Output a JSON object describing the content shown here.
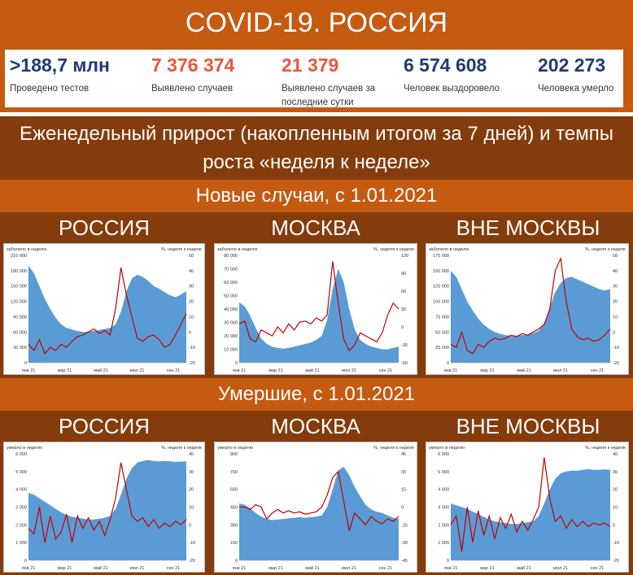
{
  "header": {
    "title": "COVID-19. РОССИЯ"
  },
  "stats": [
    {
      "value": ">188,7 млн",
      "label": "Проведено тестов",
      "color": "#1f3a78"
    },
    {
      "value": "7 376 374",
      "label": "Выявлено случаев",
      "color": "#e8573b"
    },
    {
      "value": "21 379",
      "label": "Выявлено случаев за последние сутки",
      "color": "#e8573b"
    },
    {
      "value": "6 574 608",
      "label": "Человек выздоровело",
      "color": "#1f3a78"
    },
    {
      "value": "202 273",
      "label": "Человека умерло",
      "color": "#1f3a78"
    }
  ],
  "subtitle": "Еженедельный прирост (накопленным итогом за 7 дней) и темпы роста «неделя к неделе»",
  "sections": {
    "cases": "Новые случаи, с 1.01.2021",
    "deaths": "Умершие, с 1.01.2021"
  },
  "regions": [
    "РОССИЯ",
    "МОСКВА",
    "ВНЕ МОСКВЫ"
  ],
  "colors": {
    "bands": "#c55a11",
    "dark_bands": "#843c0c",
    "area": "#5b9bd5",
    "line": "#c00000"
  },
  "chart_data": [
    {
      "type": "area",
      "region": "РОССИЯ",
      "metric": "cases",
      "left_label": "заболело в неделю",
      "right_label": "%, неделя к неделе",
      "y_left_ticks": [
        "0",
        "30 000",
        "60 000",
        "90 000",
        "120 000",
        "150 000",
        "180 000",
        "210 000"
      ],
      "y_left_lim": [
        0,
        210000
      ],
      "y_right_ticks": [
        "-20",
        "-10",
        "0",
        "10",
        "20",
        "30",
        "40",
        "50"
      ],
      "y_right_lim": [
        -20,
        50
      ],
      "x_ticks": [
        "янв 21",
        "мар 21",
        "май 21",
        "июл 21",
        "сен 21"
      ],
      "area_values": [
        190000,
        175000,
        150000,
        125000,
        105000,
        88000,
        75000,
        68000,
        65000,
        62000,
        60000,
        61000,
        62000,
        64000,
        66000,
        68000,
        75000,
        100000,
        140000,
        165000,
        172000,
        168000,
        160000,
        150000,
        145000,
        138000,
        132000,
        128000,
        133000,
        140000
      ],
      "line_values": [
        -8,
        -12,
        -5,
        -14,
        -10,
        -12,
        -8,
        -10,
        -6,
        -3,
        -2,
        0,
        2,
        -1,
        1,
        -2,
        15,
        42,
        24,
        10,
        -4,
        -6,
        -3,
        -2,
        -5,
        -10,
        -8,
        -2,
        5,
        12
      ]
    },
    {
      "type": "area",
      "region": "МОСКВА",
      "metric": "cases",
      "left_label": "заболело в неделю",
      "right_label": "%, неделя к неделе",
      "y_left_ticks": [
        "0",
        "10 000",
        "20 000",
        "30 000",
        "40 000",
        "50 000",
        "60 000",
        "70 000",
        "80 000"
      ],
      "y_left_lim": [
        0,
        80000
      ],
      "y_right_ticks": [
        "-60",
        "-30",
        "0",
        "30",
        "60",
        "90",
        "120"
      ],
      "y_right_lim": [
        -60,
        120
      ],
      "x_ticks": [
        "янв 21",
        "мар 21",
        "май 21",
        "июл 21",
        "сен 21"
      ],
      "area_values": [
        45000,
        42000,
        35000,
        26000,
        18000,
        14000,
        12000,
        11000,
        10500,
        11000,
        12000,
        13000,
        14000,
        15000,
        17000,
        20000,
        32000,
        55000,
        70000,
        60000,
        40000,
        25000,
        17000,
        14000,
        12000,
        11000,
        10000,
        10000,
        11000,
        12000
      ],
      "line_values": [
        5,
        10,
        -20,
        -25,
        -5,
        -10,
        -15,
        0,
        -10,
        5,
        -5,
        8,
        10,
        5,
        15,
        10,
        20,
        110,
        40,
        -20,
        -40,
        -30,
        -10,
        -15,
        -20,
        -25,
        -10,
        20,
        40,
        30
      ]
    },
    {
      "type": "area",
      "region": "ВНЕ МОСКВЫ",
      "metric": "cases",
      "left_label": "заболело в неделю",
      "right_label": "%, неделя к неделе",
      "y_left_ticks": [
        "0",
        "25 000",
        "50 000",
        "75 000",
        "100 000",
        "125 000",
        "150 000",
        "175 000"
      ],
      "y_left_lim": [
        0,
        175000
      ],
      "y_right_ticks": [
        "-20",
        "-10",
        "0",
        "10",
        "20",
        "30",
        "40",
        "50"
      ],
      "y_right_lim": [
        -20,
        50
      ],
      "x_ticks": [
        "янв 21",
        "мар 21",
        "май 21",
        "июл 21",
        "сен 21"
      ],
      "area_values": [
        150000,
        140000,
        120000,
        100000,
        85000,
        72000,
        62000,
        55000,
        50000,
        47000,
        45000,
        44000,
        44000,
        45000,
        46000,
        48000,
        52000,
        65000,
        90000,
        115000,
        130000,
        138000,
        140000,
        136000,
        132000,
        128000,
        124000,
        120000,
        118000,
        120000
      ],
      "line_values": [
        -8,
        -10,
        0,
        -12,
        -14,
        -8,
        -10,
        -6,
        -4,
        -5,
        -4,
        -2,
        -3,
        -1,
        -2,
        0,
        2,
        5,
        15,
        40,
        48,
        20,
        2,
        -3,
        -5,
        -4,
        -6,
        -5,
        -2,
        2
      ]
    },
    {
      "type": "area",
      "region": "РОССИЯ",
      "metric": "deaths",
      "left_label": "умерло в неделю",
      "right_label": "%, неделя к неделе",
      "y_left_ticks": [
        "0",
        "1 000",
        "2 000",
        "3 000",
        "4 000",
        "5 000",
        "6 000"
      ],
      "y_left_lim": [
        0,
        6000
      ],
      "y_right_ticks": [
        "-20",
        "-10",
        "0",
        "10",
        "20",
        "30",
        "40"
      ],
      "y_right_lim": [
        -20,
        40
      ],
      "x_ticks": [
        "янв 21",
        "мар 21",
        "май 21",
        "июл 21",
        "сен 21"
      ],
      "area_values": [
        3800,
        3700,
        3500,
        3300,
        3100,
        2900,
        2700,
        2550,
        2450,
        2400,
        2350,
        2300,
        2300,
        2350,
        2400,
        2500,
        2900,
        3700,
        4600,
        5200,
        5500,
        5600,
        5650,
        5600,
        5580,
        5600,
        5580,
        5550,
        5560,
        5580
      ],
      "line_values": [
        -2,
        -5,
        10,
        -10,
        5,
        -8,
        -4,
        6,
        -10,
        5,
        -2,
        4,
        -3,
        2,
        -6,
        3,
        15,
        35,
        20,
        5,
        2,
        4,
        -1,
        3,
        -2,
        1,
        -1,
        2,
        0,
        3
      ]
    },
    {
      "type": "area",
      "region": "МОСКВА",
      "metric": "deaths",
      "left_label": "умерло в неделю",
      "right_label": "%, неделя к неделе",
      "y_left_ticks": [
        "0",
        "150",
        "300",
        "450",
        "600",
        "750",
        "900"
      ],
      "y_left_lim": [
        0,
        900
      ],
      "y_right_ticks": [
        "-45",
        "-30",
        "-15",
        "0",
        "15",
        "30",
        "45"
      ],
      "y_right_lim": [
        -45,
        45
      ],
      "x_ticks": [
        "янв 21",
        "мар 21",
        "май 21",
        "июл 21",
        "сен 21"
      ],
      "area_values": [
        480,
        470,
        440,
        400,
        370,
        350,
        340,
        345,
        350,
        355,
        360,
        365,
        360,
        365,
        370,
        380,
        450,
        600,
        760,
        790,
        720,
        620,
        540,
        470,
        430,
        410,
        400,
        380,
        360,
        350
      ],
      "line_values": [
        0,
        0,
        -2,
        2,
        0,
        -10,
        -5,
        -2,
        -5,
        -3,
        -5,
        -4,
        -6,
        -5,
        -4,
        0,
        10,
        25,
        30,
        5,
        -20,
        -5,
        -10,
        -15,
        -8,
        -12,
        -14,
        -10,
        -12,
        -8
      ]
    },
    {
      "type": "area",
      "region": "ВНЕ МОСКВЫ",
      "metric": "deaths",
      "left_label": "умерло в неделю",
      "right_label": "%, неделя к неделе",
      "y_left_ticks": [
        "0",
        "1 000",
        "2 000",
        "3 000",
        "4 000",
        "5 000",
        "6 000"
      ],
      "y_left_lim": [
        0,
        6000
      ],
      "y_right_ticks": [
        "-20",
        "-10",
        "0",
        "10",
        "20",
        "30",
        "40"
      ],
      "y_right_lim": [
        -20,
        40
      ],
      "x_ticks": [
        "янв 21",
        "мар 21",
        "май 21",
        "июл 21",
        "сен 21"
      ],
      "area_values": [
        3200,
        3100,
        3000,
        2900,
        2750,
        2600,
        2450,
        2300,
        2200,
        2150,
        2100,
        2050,
        2050,
        2100,
        2150,
        2200,
        2500,
        3200,
        4000,
        4600,
        4900,
        5000,
        5050,
        5050,
        5100,
        5150,
        5100,
        5100,
        5120,
        5100
      ],
      "line_values": [
        0,
        5,
        -15,
        10,
        -10,
        8,
        -6,
        5,
        -8,
        4,
        -2,
        6,
        -4,
        2,
        -3,
        3,
        10,
        38,
        15,
        2,
        5,
        -2,
        3,
        -1,
        2,
        -1,
        1,
        0,
        1,
        -1
      ]
    }
  ]
}
